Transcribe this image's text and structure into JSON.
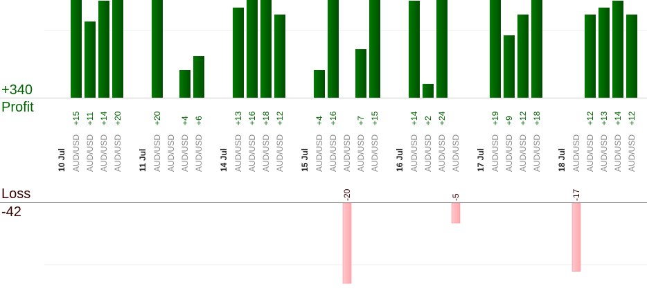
{
  "summary": {
    "total_profit": "+340",
    "profit_label": "Profit",
    "loss_label": "Loss",
    "total_loss": "-42"
  },
  "colors": {
    "profit_bar": "#006400",
    "profit_text": "#006400",
    "loss_bar": "#ffb6bb",
    "loss_text": "#3a0000",
    "instrument_text": "#8a8a8a",
    "date_text": "#222222",
    "grid": "#eeeeee",
    "baseline": "#888888"
  },
  "chart_data": {
    "type": "bar",
    "groups": [
      {
        "date": "10 Jul",
        "trades": [
          {
            "instrument": "AUD/USD",
            "value": 15,
            "label": "+15"
          },
          {
            "instrument": "AUD/USD",
            "value": 11,
            "label": "+11"
          },
          {
            "instrument": "AUD/USD",
            "value": 14,
            "label": "+14"
          },
          {
            "instrument": "AUD/USD",
            "value": 20,
            "label": "+20"
          }
        ]
      },
      {
        "date": "11 Jul",
        "trades": [
          {
            "instrument": "AUD/USD",
            "value": 20,
            "label": "+20"
          },
          {
            "instrument": "AUD/USD",
            "value": 0,
            "label": ""
          },
          {
            "instrument": "AUD/USD",
            "value": 4,
            "label": "+4"
          },
          {
            "instrument": "AUD/USD",
            "value": 6,
            "label": "+6"
          }
        ]
      },
      {
        "date": "14 Jul",
        "trades": [
          {
            "instrument": "AUD/USD",
            "value": 13,
            "label": "+13"
          },
          {
            "instrument": "AUD/USD",
            "value": 16,
            "label": "+16"
          },
          {
            "instrument": "AUD/USD",
            "value": 18,
            "label": "+18"
          },
          {
            "instrument": "AUD/USD",
            "value": 12,
            "label": "+12"
          }
        ]
      },
      {
        "date": "15 Jul",
        "trades": [
          {
            "instrument": "AUD/USD",
            "value": 4,
            "label": "+4"
          },
          {
            "instrument": "AUD/USD",
            "value": 16,
            "label": "+16"
          },
          {
            "instrument": "AUD/USD",
            "value": -20,
            "label": "-20"
          },
          {
            "instrument": "AUD/USD",
            "value": 7,
            "label": "+7"
          },
          {
            "instrument": "AUD/USD",
            "value": 15,
            "label": "+15"
          }
        ]
      },
      {
        "date": "16 Jul",
        "trades": [
          {
            "instrument": "AUD/USD",
            "value": 14,
            "label": "+14"
          },
          {
            "instrument": "AUD/USD",
            "value": 2,
            "label": "+2"
          },
          {
            "instrument": "AUD/USD",
            "value": 24,
            "label": "+24"
          },
          {
            "instrument": "AUD/USD",
            "value": -5,
            "label": "-5"
          }
        ]
      },
      {
        "date": "17 Jul",
        "trades": [
          {
            "instrument": "AUD/USD",
            "value": 19,
            "label": "+19"
          },
          {
            "instrument": "AUD/USD",
            "value": 9,
            "label": "+9"
          },
          {
            "instrument": "AUD/USD",
            "value": 12,
            "label": "+12"
          },
          {
            "instrument": "AUD/USD",
            "value": 18,
            "label": "+18"
          }
        ]
      },
      {
        "date": "18 Jul",
        "trades": [
          {
            "instrument": "AUD/USD",
            "value": -17,
            "label": "-17"
          },
          {
            "instrument": "AUD/USD",
            "value": 12,
            "label": "+12"
          },
          {
            "instrument": "AUD/USD",
            "value": 13,
            "label": "+13"
          },
          {
            "instrument": "AUD/USD",
            "value": 14,
            "label": "+14"
          },
          {
            "instrument": "AUD/USD",
            "value": 12,
            "label": "+12"
          }
        ]
      }
    ]
  }
}
